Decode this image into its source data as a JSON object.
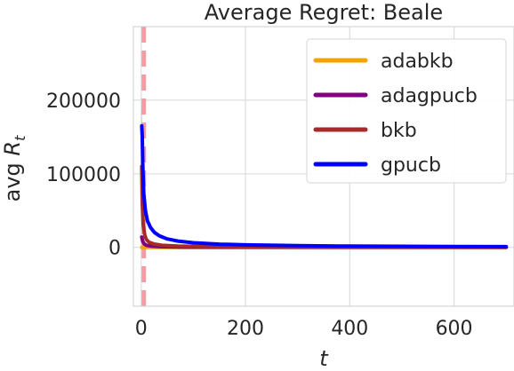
{
  "chart_data": {
    "type": "line",
    "title": "Average Regret: Beale",
    "xlabel": "t",
    "ylabel": "avg R_t",
    "xlim": [
      -15,
      715
    ],
    "ylim": [
      -80000,
      300000
    ],
    "xticks": [
      0,
      200,
      400,
      600
    ],
    "yticks": [
      0,
      100000,
      200000
    ],
    "grid": true,
    "legend_position": "top-right",
    "vline": {
      "x": 5,
      "color": "#f4919a",
      "style": "dashed"
    },
    "series": [
      {
        "name": "adabkb",
        "color": "#f5a300",
        "x": [
          1,
          3,
          6,
          10,
          20,
          50,
          100,
          200,
          400,
          700
        ],
        "y": [
          0,
          0,
          0,
          0,
          0,
          0,
          0,
          0,
          0,
          0
        ]
      },
      {
        "name": "adagpucb",
        "color": "#800080",
        "x": [
          1,
          3,
          6,
          10,
          20,
          40,
          80,
          200,
          400,
          700
        ],
        "y": [
          14000,
          8000,
          4500,
          2800,
          1500,
          800,
          400,
          180,
          90,
          50
        ]
      },
      {
        "name": "bkb",
        "color": "#a52a2a",
        "x": [
          1,
          2,
          4,
          7,
          10,
          15,
          25,
          40,
          70,
          150,
          300,
          700
        ],
        "y": [
          110000,
          60000,
          30000,
          16000,
          10500,
          7000,
          4500,
          2800,
          1700,
          800,
          400,
          160
        ]
      },
      {
        "name": "gpucb",
        "color": "#0000ff",
        "x": [
          1,
          2,
          3,
          5,
          8,
          12,
          18,
          25,
          35,
          50,
          70,
          100,
          150,
          200,
          300,
          400,
          500,
          600,
          700
        ],
        "y": [
          165000,
          150000,
          110000,
          72000,
          50000,
          36000,
          27000,
          20500,
          15500,
          11500,
          8500,
          6200,
          4300,
          3300,
          2300,
          1700,
          1400,
          1200,
          1000
        ]
      }
    ]
  }
}
